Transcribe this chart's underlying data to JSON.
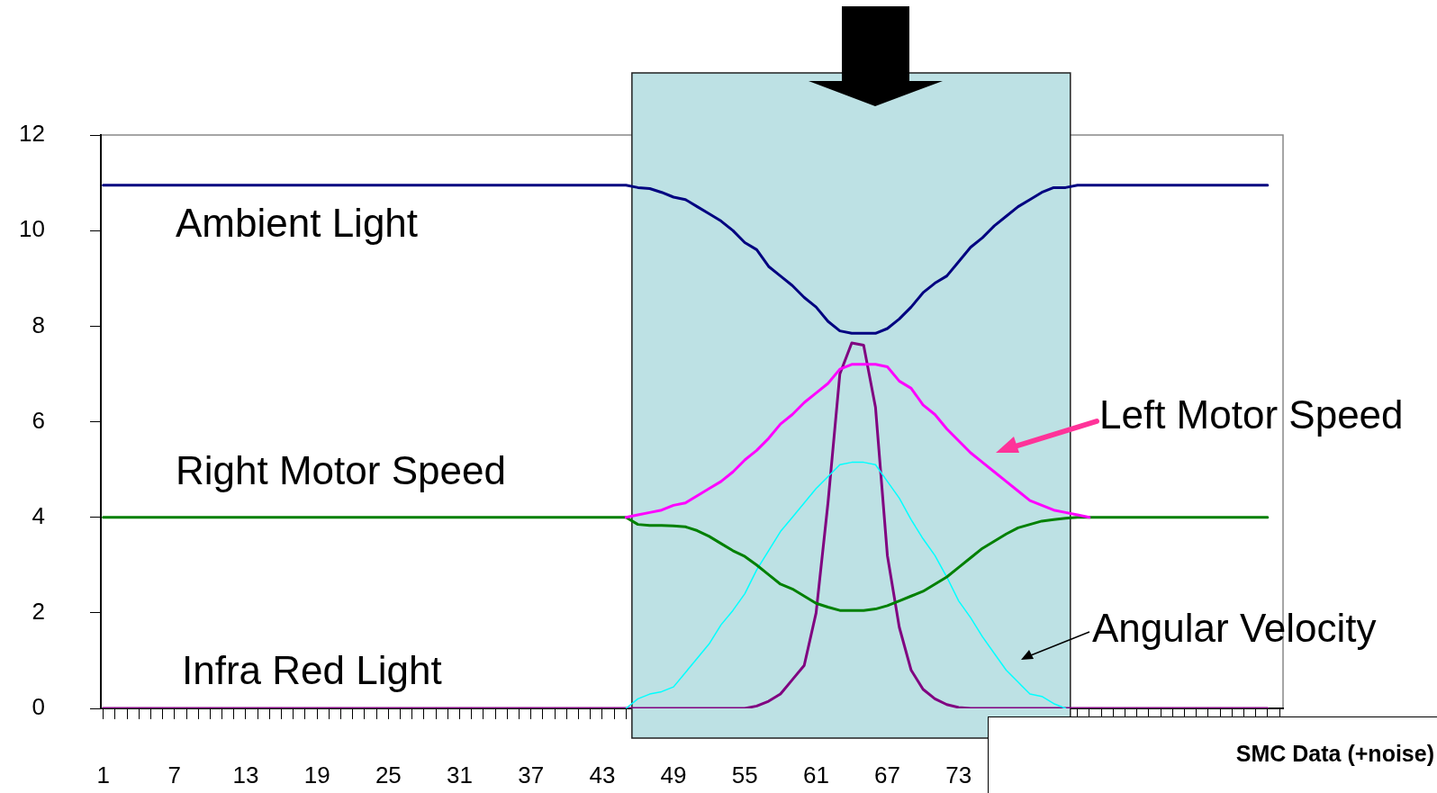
{
  "chart_data": {
    "type": "line",
    "x": [
      1,
      2,
      3,
      4,
      5,
      6,
      7,
      8,
      9,
      10,
      11,
      12,
      13,
      14,
      15,
      16,
      17,
      18,
      19,
      20,
      21,
      22,
      23,
      24,
      25,
      26,
      27,
      28,
      29,
      30,
      31,
      32,
      33,
      34,
      35,
      36,
      37,
      38,
      39,
      40,
      41,
      42,
      43,
      44,
      45,
      46,
      47,
      48,
      49,
      50,
      51,
      52,
      53,
      54,
      55,
      56,
      57,
      58,
      59,
      60,
      61,
      62,
      63,
      64,
      65,
      66,
      67,
      68,
      69,
      70,
      71,
      72,
      73,
      74,
      75,
      76,
      77,
      78,
      79,
      80,
      81,
      82,
      83,
      84,
      85,
      86,
      87,
      88,
      89,
      90,
      91,
      92,
      93,
      94,
      95,
      96,
      97,
      98,
      99
    ],
    "series": [
      {
        "name": "Ambient Light",
        "color": "#000080",
        "values": [
          10.95,
          10.95,
          10.95,
          10.95,
          10.95,
          10.95,
          10.95,
          10.95,
          10.95,
          10.95,
          10.95,
          10.95,
          10.95,
          10.95,
          10.95,
          10.95,
          10.95,
          10.95,
          10.95,
          10.95,
          10.95,
          10.95,
          10.95,
          10.95,
          10.95,
          10.95,
          10.95,
          10.95,
          10.95,
          10.95,
          10.95,
          10.95,
          10.95,
          10.95,
          10.95,
          10.95,
          10.95,
          10.95,
          10.95,
          10.95,
          10.95,
          10.95,
          10.95,
          10.95,
          10.95,
          10.9,
          10.88,
          10.8,
          10.7,
          10.65,
          10.5,
          10.35,
          10.2,
          10.0,
          9.75,
          9.6,
          9.25,
          9.05,
          8.85,
          8.6,
          8.4,
          8.1,
          7.9,
          7.85,
          7.85,
          7.85,
          7.95,
          8.15,
          8.4,
          8.7,
          8.9,
          9.05,
          9.35,
          9.65,
          9.85,
          10.1,
          10.3,
          10.5,
          10.65,
          10.8,
          10.9,
          10.9,
          10.95,
          10.95,
          10.95,
          10.95,
          10.95,
          10.95,
          10.95,
          10.95,
          10.95,
          10.95,
          10.95,
          10.95,
          10.95,
          10.95,
          10.95,
          10.95,
          10.95
        ]
      },
      {
        "name": "Left Motor Speed",
        "color": "#ff00ff",
        "values": [
          null,
          null,
          null,
          null,
          null,
          null,
          null,
          null,
          null,
          null,
          null,
          null,
          null,
          null,
          null,
          null,
          null,
          null,
          null,
          null,
          null,
          null,
          null,
          null,
          null,
          null,
          null,
          null,
          null,
          null,
          null,
          null,
          null,
          null,
          null,
          null,
          null,
          null,
          null,
          null,
          null,
          null,
          null,
          null,
          4.0,
          4.05,
          4.1,
          4.15,
          4.25,
          4.3,
          4.45,
          4.6,
          4.75,
          4.95,
          5.2,
          5.4,
          5.65,
          5.95,
          6.15,
          6.4,
          6.6,
          6.8,
          7.1,
          7.2,
          7.2,
          7.2,
          7.15,
          6.85,
          6.7,
          6.35,
          6.15,
          5.85,
          5.6,
          5.35,
          5.15,
          4.95,
          4.75,
          4.55,
          4.35,
          4.25,
          4.15,
          4.1,
          4.05,
          4.0,
          null,
          null,
          null,
          null,
          null,
          null,
          null,
          null,
          null,
          null,
          null,
          null,
          null,
          null,
          null
        ]
      },
      {
        "name": "Right Motor Speed",
        "color": "#008000",
        "values": [
          4,
          4,
          4,
          4,
          4,
          4,
          4,
          4,
          4,
          4,
          4,
          4,
          4,
          4,
          4,
          4,
          4,
          4,
          4,
          4,
          4,
          4,
          4,
          4,
          4,
          4,
          4,
          4,
          4,
          4,
          4,
          4,
          4,
          4,
          4,
          4,
          4,
          4,
          4,
          4,
          4,
          4,
          4,
          4,
          4,
          3.85,
          3.83,
          3.83,
          3.82,
          3.8,
          3.72,
          3.6,
          3.45,
          3.3,
          3.18,
          3.0,
          2.8,
          2.6,
          2.5,
          2.35,
          2.2,
          2.12,
          2.05,
          2.05,
          2.05,
          2.08,
          2.15,
          2.25,
          2.35,
          2.45,
          2.6,
          2.75,
          2.95,
          3.15,
          3.35,
          3.5,
          3.65,
          3.78,
          3.85,
          3.92,
          3.95,
          3.98,
          4.0,
          4,
          4,
          4,
          4,
          4,
          4,
          4,
          4,
          4,
          4,
          4,
          4,
          4,
          4,
          4,
          4
        ]
      },
      {
        "name": "Angular Velocity",
        "color": "#00ffff",
        "values": [
          null,
          null,
          null,
          null,
          null,
          null,
          null,
          null,
          null,
          null,
          null,
          null,
          null,
          null,
          null,
          null,
          null,
          null,
          null,
          null,
          null,
          null,
          null,
          null,
          null,
          null,
          null,
          null,
          null,
          null,
          null,
          null,
          null,
          null,
          null,
          null,
          null,
          null,
          null,
          null,
          null,
          null,
          null,
          null,
          0,
          0.2,
          0.3,
          0.35,
          0.45,
          0.75,
          1.05,
          1.35,
          1.75,
          2.05,
          2.4,
          2.9,
          3.3,
          3.7,
          4.0,
          4.3,
          4.6,
          4.85,
          5.1,
          5.15,
          5.15,
          5.1,
          4.75,
          4.4,
          3.95,
          3.55,
          3.2,
          2.75,
          2.25,
          1.9,
          1.5,
          1.15,
          0.8,
          0.55,
          0.3,
          0.25,
          0.1,
          0.0,
          null,
          null,
          null,
          null,
          null,
          null,
          null,
          null,
          null,
          null,
          null,
          null,
          null,
          null,
          null,
          null,
          null
        ]
      },
      {
        "name": "Infra Red Light",
        "color": "#800080",
        "values": [
          0,
          0,
          0,
          0,
          0,
          0,
          0,
          0,
          0,
          0,
          0,
          0,
          0,
          0,
          0,
          0,
          0,
          0,
          0,
          0,
          0,
          0,
          0,
          0,
          0,
          0,
          0,
          0,
          0,
          0,
          0,
          0,
          0,
          0,
          0,
          0,
          0,
          0,
          0,
          0,
          0,
          0,
          0,
          0,
          0,
          0,
          0,
          0,
          0,
          0,
          0,
          0,
          0,
          0,
          0,
          0.05,
          0.15,
          0.3,
          0.6,
          0.9,
          2.0,
          4.3,
          7.0,
          7.65,
          7.6,
          6.3,
          3.2,
          1.7,
          0.8,
          0.4,
          0.2,
          0.08,
          0.02,
          0,
          0,
          0,
          0,
          0,
          0,
          0,
          0,
          0,
          0,
          0,
          0,
          0,
          0,
          0,
          0,
          0,
          0,
          0,
          0,
          0,
          0,
          0,
          0,
          0,
          0
        ]
      }
    ],
    "xlim": [
      0.8,
      100.3
    ],
    "xticks": [
      1,
      {
        "value": 2,
        "label": null
      },
      {
        "value": 3,
        "label": null
      },
      {
        "value": 4,
        "label": null
      },
      {
        "value": 5,
        "label": null
      },
      {
        "value": 6,
        "label": null
      },
      7,
      {
        "value": 8,
        "label": null
      },
      {
        "value": 9,
        "label": null
      },
      {
        "value": 10,
        "label": null
      },
      {
        "value": 11,
        "label": null
      },
      {
        "value": 12,
        "label": null
      },
      13,
      {
        "value": 14,
        "label": null
      },
      {
        "value": 15,
        "label": null
      },
      {
        "value": 16,
        "label": null
      },
      {
        "value": 17,
        "label": null
      },
      {
        "value": 18,
        "label": null
      },
      19,
      {
        "value": 20,
        "label": null
      },
      {
        "value": 21,
        "label": null
      },
      {
        "value": 22,
        "label": null
      },
      {
        "value": 23,
        "label": null
      },
      {
        "value": 24,
        "label": null
      },
      25,
      {
        "value": 26,
        "label": null
      },
      {
        "value": 27,
        "label": null
      },
      {
        "value": 28,
        "label": null
      },
      {
        "value": 29,
        "label": null
      },
      {
        "value": 30,
        "label": null
      },
      31,
      {
        "value": 32,
        "label": null
      },
      {
        "value": 33,
        "label": null
      },
      {
        "value": 34,
        "label": null
      },
      {
        "value": 35,
        "label": null
      },
      {
        "value": 36,
        "label": null
      },
      37,
      {
        "value": 38,
        "label": null
      },
      {
        "value": 39,
        "label": null
      },
      {
        "value": 40,
        "label": null
      },
      {
        "value": 41,
        "label": null
      },
      {
        "value": 42,
        "label": null
      },
      43,
      {
        "value": 44,
        "label": null
      },
      {
        "value": 45,
        "label": null
      },
      {
        "value": 46,
        "label": null
      },
      {
        "value": 47,
        "label": null
      },
      {
        "value": 48,
        "label": null
      },
      49,
      {
        "value": 50,
        "label": null
      },
      {
        "value": 51,
        "label": null
      },
      {
        "value": 52,
        "label": null
      },
      {
        "value": 53,
        "label": null
      },
      {
        "value": 54,
        "label": null
      },
      55,
      {
        "value": 56,
        "label": null
      },
      {
        "value": 57,
        "label": null
      },
      {
        "value": 58,
        "label": null
      },
      {
        "value": 59,
        "label": null
      },
      {
        "value": 60,
        "label": null
      },
      61,
      {
        "value": 62,
        "label": null
      },
      {
        "value": 63,
        "label": null
      },
      {
        "value": 64,
        "label": null
      },
      {
        "value": 65,
        "label": null
      },
      {
        "value": 66,
        "label": null
      },
      67,
      {
        "value": 68,
        "label": null
      },
      {
        "value": 69,
        "label": null
      },
      {
        "value": 70,
        "label": null
      },
      {
        "value": 71,
        "label": null
      },
      {
        "value": 72,
        "label": null
      },
      73,
      {
        "value": 74,
        "label": null
      },
      {
        "value": 75,
        "label": null
      },
      {
        "value": 76,
        "label": null
      },
      {
        "value": 77,
        "label": null
      },
      {
        "value": 78,
        "label": null
      },
      {
        "value": 79,
        "label": null
      },
      {
        "value": 80,
        "label": null
      },
      {
        "value": 81,
        "label": null
      },
      {
        "value": 82,
        "label": null
      },
      {
        "value": 83,
        "label": null
      },
      {
        "value": 84,
        "label": null
      },
      {
        "value": 85,
        "label": null
      },
      {
        "value": 86,
        "label": null
      },
      {
        "value": 87,
        "label": null
      },
      {
        "value": 88,
        "label": null
      },
      {
        "value": 89,
        "label": null
      },
      {
        "value": 90,
        "label": null
      },
      {
        "value": 91,
        "label": null
      },
      {
        "value": 92,
        "label": null
      },
      {
        "value": 93,
        "label": null
      },
      {
        "value": 94,
        "label": null
      },
      {
        "value": 95,
        "label": null
      },
      {
        "value": 96,
        "label": null
      },
      {
        "value": 97,
        "label": null
      },
      {
        "value": 98,
        "label": null
      },
      {
        "value": 99,
        "label": null
      },
      {
        "value": 100,
        "label": null
      }
    ],
    "ylim": [
      0,
      12
    ],
    "yticks": [
      0,
      2,
      4,
      6,
      8,
      10,
      12
    ],
    "bands": [
      {
        "axis": "x",
        "from": 45.5,
        "to": 82.4,
        "color": "#bde1e4"
      }
    ],
    "annotations": [
      "SMC Data (+noise)"
    ],
    "legend": false,
    "marker": "none",
    "line_style": "solid"
  }
}
